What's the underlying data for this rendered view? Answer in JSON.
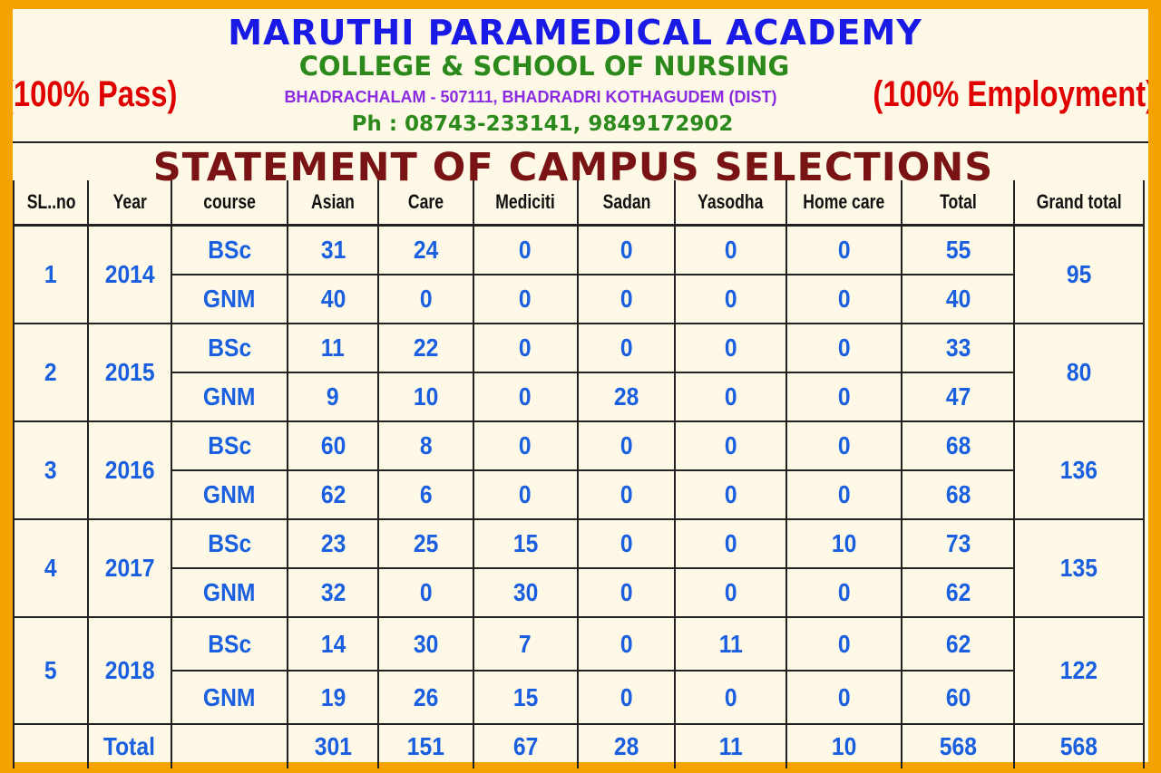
{
  "header": {
    "title": "MARUTHI PARAMEDICAL ACADEMY",
    "subtitle": "COLLEGE & SCHOOL OF NURSING",
    "address": "BHADRACHALAM - 507111, BHADRADRI KOTHAGUDEM (DIST)",
    "phone": "Ph : 08743-233141, 9849172902",
    "left_tag": "(100% Pass)",
    "right_tag": "(100% Employment)"
  },
  "statement_title": "STATEMENT OF CAMPUS SELECTIONS",
  "table": {
    "columns": [
      "SL..no",
      "Year",
      "course",
      "Asian",
      "Care",
      "Mediciti",
      "Sadan",
      "Yasodha",
      "Home care",
      "Total",
      "Grand total"
    ],
    "groups": [
      {
        "sl": "1",
        "year": "2014",
        "grand_total": "95",
        "rows": [
          {
            "course": "BSc",
            "asian": "31",
            "care": "24",
            "mediciti": "0",
            "sadan": "0",
            "yasodha": "0",
            "home_care": "0",
            "total": "55"
          },
          {
            "course": "GNM",
            "asian": "40",
            "care": "0",
            "mediciti": "0",
            "sadan": "0",
            "yasodha": "0",
            "home_care": "0",
            "total": "40"
          }
        ]
      },
      {
        "sl": "2",
        "year": "2015",
        "grand_total": "80",
        "rows": [
          {
            "course": "BSc",
            "asian": "11",
            "care": "22",
            "mediciti": "0",
            "sadan": "0",
            "yasodha": "0",
            "home_care": "0",
            "total": "33"
          },
          {
            "course": "GNM",
            "asian": "9",
            "care": "10",
            "mediciti": "0",
            "sadan": "28",
            "yasodha": "0",
            "home_care": "0",
            "total": "47"
          }
        ]
      },
      {
        "sl": "3",
        "year": "2016",
        "grand_total": "136",
        "rows": [
          {
            "course": "BSc",
            "asian": "60",
            "care": "8",
            "mediciti": "0",
            "sadan": "0",
            "yasodha": "0",
            "home_care": "0",
            "total": "68"
          },
          {
            "course": "GNM",
            "asian": "62",
            "care": "6",
            "mediciti": "0",
            "sadan": "0",
            "yasodha": "0",
            "home_care": "0",
            "total": "68"
          }
        ]
      },
      {
        "sl": "4",
        "year": "2017",
        "grand_total": "135",
        "rows": [
          {
            "course": "BSc",
            "asian": "23",
            "care": "25",
            "mediciti": "15",
            "sadan": "0",
            "yasodha": "0",
            "home_care": "10",
            "total": "73"
          },
          {
            "course": "GNM",
            "asian": "32",
            "care": "0",
            "mediciti": "30",
            "sadan": "0",
            "yasodha": "0",
            "home_care": "0",
            "total": "62"
          }
        ]
      },
      {
        "sl": "5",
        "year": "2018",
        "grand_total": "122",
        "rows": [
          {
            "course": "BSc",
            "asian": "14",
            "care": "30",
            "mediciti": "7",
            "sadan": "0",
            "yasodha": "11",
            "home_care": "0",
            "total": "62"
          },
          {
            "course": "GNM",
            "asian": "19",
            "care": "26",
            "mediciti": "15",
            "sadan": "0",
            "yasodha": "0",
            "home_care": "0",
            "total": "60"
          }
        ]
      }
    ],
    "totals": {
      "label": "Total",
      "asian": "301",
      "care": "151",
      "mediciti": "67",
      "sadan": "28",
      "yasodha": "11",
      "home_care": "10",
      "total": "568",
      "grand_total": "568"
    }
  }
}
